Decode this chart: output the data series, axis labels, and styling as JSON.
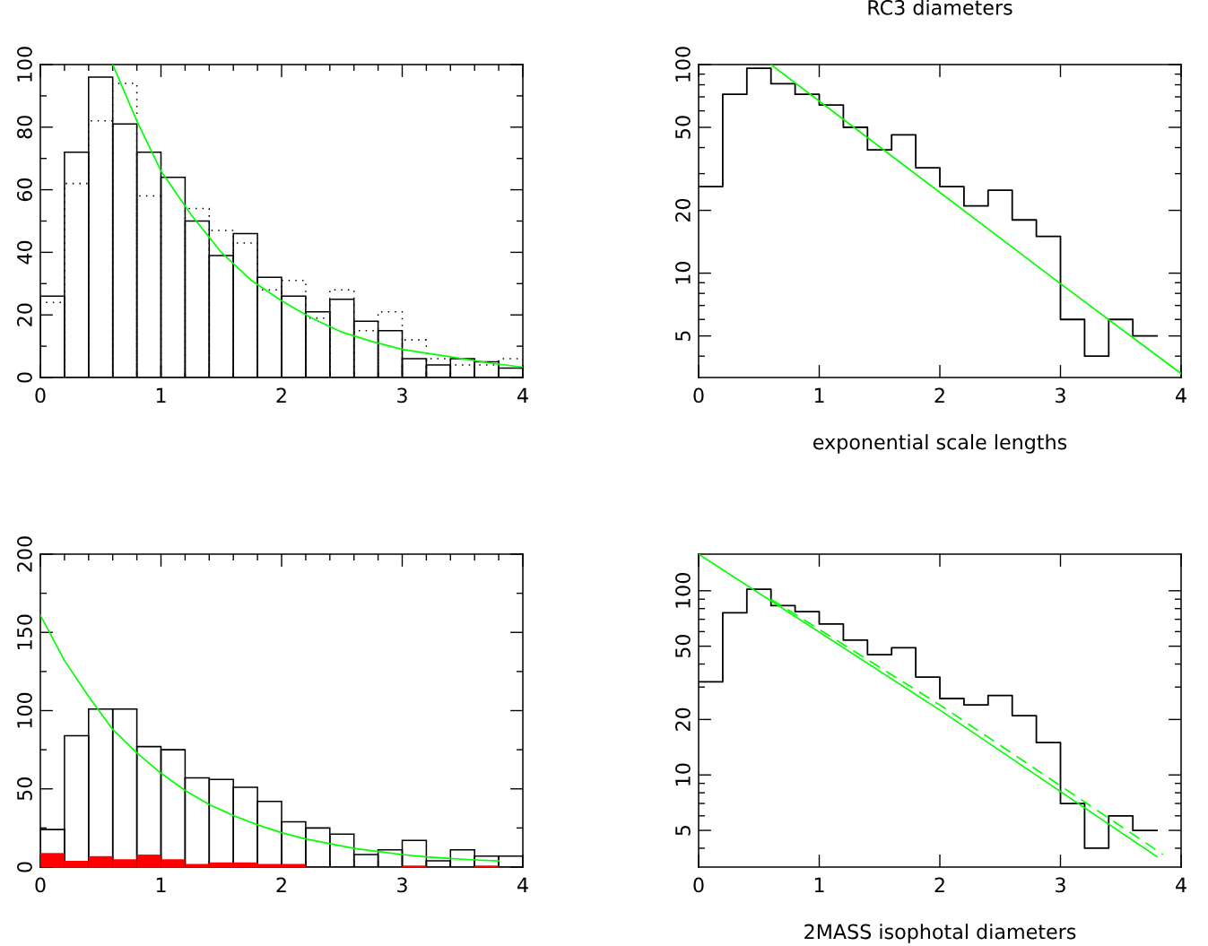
{
  "chart_data": [
    {
      "type": "histogram",
      "bins": [
        0,
        0.2,
        0.4,
        0.6,
        0.8,
        1.0,
        1.2,
        1.4,
        1.6,
        1.8,
        2.0,
        2.2,
        2.4,
        2.6,
        2.8,
        3.0,
        3.2,
        3.4,
        3.6,
        3.8,
        4.0
      ],
      "series": [
        {
          "type": "histogram",
          "color": "#000000",
          "line_style": "dotted",
          "values": [
            24,
            62,
            82,
            94,
            58,
            null,
            54,
            47,
            43,
            28,
            31,
            19,
            28,
            15,
            21,
            12,
            6,
            4,
            4,
            6
          ]
        },
        {
          "type": "histogram",
          "color": "#000000",
          "line_style": "solid",
          "values": [
            26,
            72,
            96,
            81,
            72,
            64,
            50,
            39,
            46,
            32,
            26,
            21,
            25,
            18,
            15,
            6,
            4,
            6,
            5,
            3
          ]
        },
        {
          "type": "line",
          "color": "#00ff00",
          "line_style": "solid",
          "x": [
            0.6,
            0.8,
            1.0,
            1.25,
            1.5,
            1.75,
            2.0,
            2.25,
            2.5,
            2.75,
            3.0,
            3.25,
            3.5,
            3.75,
            4.0
          ],
          "values": [
            100,
            82,
            66,
            52,
            40,
            31,
            24.5,
            19,
            14.5,
            11.5,
            9,
            7.5,
            6,
            4.5,
            3.3
          ]
        }
      ],
      "xlim": [
        0,
        4
      ],
      "xticks": [
        0,
        1,
        2,
        3,
        4
      ],
      "ylim": [
        0,
        100
      ],
      "yticks": [
        0,
        20,
        40,
        60,
        80,
        100
      ]
    },
    {
      "type": "step",
      "title": "RC3 diameters",
      "xlabel": "exponential scale lengths",
      "log": "y",
      "series": [
        {
          "type": "step",
          "color": "#000000",
          "line_style": "solid",
          "x": [
            0,
            0.2,
            0.4,
            0.6,
            0.8,
            1.0,
            1.2,
            1.4,
            1.6,
            1.8,
            2.0,
            2.2,
            2.4,
            2.6,
            2.8,
            3.0,
            3.2,
            3.4,
            3.6,
            3.8
          ],
          "values": [
            26,
            72,
            96,
            81,
            72,
            64,
            50,
            39,
            46,
            32,
            26,
            21,
            25,
            18,
            15,
            6,
            4,
            6,
            5,
            5
          ]
        },
        {
          "type": "line",
          "color": "#00ff00",
          "line_style": "solid",
          "x": [
            0.6,
            3.0,
            4.0
          ],
          "values": [
            100,
            8.9,
            3.3
          ]
        }
      ],
      "xlim": [
        0,
        4
      ],
      "xticks": [
        0,
        1,
        2,
        3,
        4
      ],
      "ylim": [
        3.16,
        100
      ],
      "yticks": [
        5,
        10,
        20,
        50,
        100
      ]
    },
    {
      "type": "histogram",
      "bins": [
        0,
        0.2,
        0.4,
        0.6,
        0.8,
        1.0,
        1.2,
        1.4,
        1.6,
        1.8,
        2.0,
        2.2,
        2.4,
        2.6,
        2.8,
        3.0,
        3.2,
        3.4,
        3.6,
        3.8,
        4.0
      ],
      "series": [
        {
          "type": "histogram",
          "color": "#000000",
          "line_style": "solid",
          "values": [
            24,
            84,
            101,
            101,
            77,
            75,
            57,
            56,
            51,
            42,
            29,
            25,
            21,
            8,
            11,
            17,
            4,
            11,
            7,
            7
          ]
        },
        {
          "type": "histogram",
          "color": "#ff0000",
          "values": [
            9,
            4,
            7,
            5,
            8,
            5,
            2,
            3,
            3,
            2,
            2,
            0,
            0,
            0,
            0,
            1,
            0,
            0,
            1,
            0
          ]
        },
        {
          "type": "line",
          "color": "#00ff00",
          "line_style": "solid",
          "x": [
            0,
            0.2,
            0.4,
            0.6,
            0.8,
            1.0,
            1.2,
            1.4,
            1.6,
            1.8,
            2.0,
            2.2,
            2.4,
            2.6,
            2.8,
            3.0,
            3.2,
            3.4,
            3.6,
            3.8
          ],
          "values": [
            161,
            132,
            109,
            88,
            73,
            60,
            49,
            40,
            33,
            27,
            22,
            18,
            15,
            12,
            10,
            8,
            6.5,
            5.5,
            4.6,
            4
          ]
        }
      ],
      "xlim": [
        0,
        4
      ],
      "xticks": [
        0,
        1,
        2,
        3,
        4
      ],
      "ylim": [
        0,
        200
      ],
      "yticks": [
        0,
        50,
        100,
        150,
        200
      ]
    },
    {
      "type": "step",
      "xlabel": "2MASS isophotal diameters",
      "log": "y",
      "series": [
        {
          "type": "step",
          "color": "#000000",
          "line_style": "solid",
          "x": [
            0,
            0.2,
            0.4,
            0.6,
            0.8,
            1.0,
            1.2,
            1.4,
            1.6,
            1.8,
            2.0,
            2.2,
            2.4,
            2.6,
            2.8,
            3.0,
            3.2,
            3.4,
            3.6,
            3.8
          ],
          "values": [
            32,
            76,
            102,
            83,
            77,
            66,
            54,
            45,
            49,
            34,
            26,
            24,
            27,
            21,
            15,
            7,
            4,
            6,
            5,
            5
          ]
        },
        {
          "type": "line",
          "color": "#00ff00",
          "line_style": "dashed",
          "x": [
            0.6,
            2.0,
            3.85
          ],
          "values": [
            90,
            24,
            3.7
          ]
        },
        {
          "type": "line",
          "color": "#00ff00",
          "line_style": "solid",
          "x": [
            0,
            2.0,
            3.8
          ],
          "values": [
            158,
            22.5,
            3.6
          ]
        }
      ],
      "xlim": [
        0,
        4
      ],
      "xticks": [
        0,
        1,
        2,
        3,
        4
      ],
      "ylim": [
        3.16,
        158
      ],
      "yticks": [
        5,
        10,
        20,
        50,
        100
      ]
    }
  ]
}
